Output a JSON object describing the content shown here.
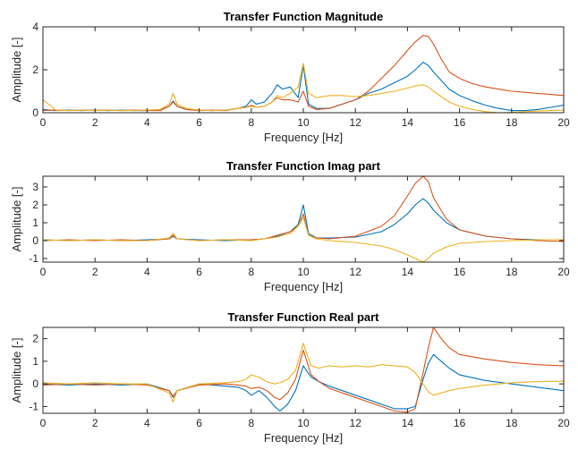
{
  "chart_data": [
    {
      "type": "line",
      "title": "Transfer Function Magnitude",
      "xlabel": "Frequency [Hz]",
      "ylabel": "Amplitude [-]",
      "xlim": [
        0,
        20
      ],
      "ylim": [
        0,
        4
      ],
      "xticks": [
        "0",
        "2",
        "4",
        "6",
        "8",
        "10",
        "12",
        "14",
        "16",
        "18",
        "20"
      ],
      "yticks": [
        "0",
        "2",
        "4"
      ],
      "grid": false,
      "legend": "none",
      "series": [
        {
          "color": "#0072BD",
          "x": [
            0,
            0.5,
            1,
            1.5,
            2,
            2.5,
            3,
            3.5,
            4,
            4.5,
            4.85,
            5,
            5.15,
            5.5,
            6,
            6.5,
            7,
            7.5,
            7.8,
            8,
            8.2,
            8.5,
            8.8,
            9,
            9.2,
            9.5,
            9.8,
            10,
            10.2,
            10.5,
            11,
            11.5,
            12,
            12.5,
            13,
            13.5,
            14,
            14.3,
            14.6,
            14.8,
            15,
            15.3,
            15.6,
            16,
            16.5,
            17,
            17.5,
            18,
            18.5,
            19,
            19.5,
            20
          ],
          "y": [
            0.15,
            0.1,
            0.12,
            0.1,
            0.12,
            0.1,
            0.12,
            0.1,
            0.1,
            0.12,
            0.3,
            0.55,
            0.3,
            0.15,
            0.12,
            0.1,
            0.12,
            0.2,
            0.3,
            0.6,
            0.4,
            0.5,
            0.9,
            1.3,
            1.1,
            1.2,
            0.7,
            2.2,
            0.4,
            0.2,
            0.2,
            0.4,
            0.6,
            0.9,
            1.1,
            1.4,
            1.7,
            2.0,
            2.35,
            2.2,
            1.9,
            1.5,
            1.1,
            0.8,
            0.55,
            0.35,
            0.2,
            0.1,
            0.1,
            0.15,
            0.25,
            0.35
          ]
        },
        {
          "color": "#D95319",
          "x": [
            0,
            0.5,
            1,
            1.5,
            2,
            2.5,
            3,
            3.5,
            4,
            4.5,
            4.85,
            5,
            5.15,
            5.5,
            6,
            6.5,
            7,
            7.5,
            7.8,
            8,
            8.2,
            8.5,
            8.8,
            9,
            9.2,
            9.5,
            9.8,
            10,
            10.2,
            10.5,
            11,
            11.5,
            12,
            12.5,
            13,
            13.5,
            14,
            14.3,
            14.6,
            14.8,
            15,
            15.3,
            15.6,
            16,
            16.5,
            17,
            17.5,
            18,
            18.5,
            19,
            19.5,
            20
          ],
          "y": [
            0.1,
            0.12,
            0.1,
            0.12,
            0.1,
            0.12,
            0.1,
            0.12,
            0.1,
            0.1,
            0.3,
            0.5,
            0.3,
            0.15,
            0.1,
            0.12,
            0.1,
            0.2,
            0.25,
            0.35,
            0.25,
            0.3,
            0.5,
            0.7,
            0.6,
            0.6,
            0.5,
            1.0,
            0.3,
            0.15,
            0.2,
            0.4,
            0.6,
            1.0,
            1.6,
            2.2,
            2.9,
            3.3,
            3.6,
            3.55,
            3.2,
            2.5,
            1.9,
            1.6,
            1.35,
            1.2,
            1.1,
            1.0,
            0.95,
            0.9,
            0.85,
            0.8
          ]
        },
        {
          "color": "#EDB120",
          "x": [
            0,
            0.5,
            1,
            1.5,
            2,
            2.5,
            3,
            3.5,
            4,
            4.5,
            4.85,
            5,
            5.15,
            5.5,
            6,
            6.5,
            7,
            7.5,
            7.8,
            8,
            8.2,
            8.5,
            8.8,
            9,
            9.2,
            9.5,
            9.8,
            10,
            10.2,
            10.5,
            11,
            11.5,
            12,
            12.5,
            13,
            13.5,
            14,
            14.3,
            14.6,
            14.8,
            15,
            15.3,
            15.6,
            16,
            16.5,
            17,
            17.5,
            18,
            18.5,
            19,
            19.5,
            20
          ],
          "y": [
            0.6,
            0.12,
            0.1,
            0.12,
            0.1,
            0.12,
            0.1,
            0.1,
            0.12,
            0.15,
            0.4,
            0.9,
            0.4,
            0.2,
            0.12,
            0.1,
            0.12,
            0.2,
            0.25,
            0.3,
            0.25,
            0.3,
            0.5,
            0.8,
            0.7,
            0.9,
            1.2,
            2.3,
            0.9,
            0.7,
            0.8,
            0.8,
            0.75,
            0.8,
            0.9,
            1.0,
            1.15,
            1.25,
            1.3,
            1.2,
            1.0,
            0.75,
            0.5,
            0.3,
            0.15,
            0.05,
            0.0,
            0.02,
            0.05,
            0.08,
            0.1,
            0.12
          ]
        }
      ]
    },
    {
      "type": "line",
      "title": "Transfer Function Imag part",
      "xlabel": "Frequency [Hz]",
      "ylabel": "Amplitude [-]",
      "xlim": [
        0,
        20
      ],
      "ylim": [
        -1.2,
        3.6
      ],
      "xticks": [
        "0",
        "2",
        "4",
        "6",
        "8",
        "10",
        "12",
        "14",
        "16",
        "18",
        "20"
      ],
      "yticks": [
        "-1",
        "0",
        "1",
        "2",
        "3"
      ],
      "grid": false,
      "legend": "none",
      "series": [
        {
          "color": "#0072BD",
          "x": [
            0,
            1,
            2,
            3,
            4,
            4.85,
            5,
            5.15,
            6,
            7,
            8,
            8.5,
            9,
            9.5,
            9.8,
            10,
            10.2,
            10.5,
            11,
            12,
            13,
            13.5,
            14,
            14.3,
            14.6,
            14.8,
            15,
            15.5,
            16,
            17,
            18,
            19,
            20
          ],
          "y": [
            0.05,
            0.0,
            0.05,
            0.0,
            0.05,
            0.1,
            0.25,
            0.1,
            0.05,
            0.0,
            0.05,
            0.1,
            0.25,
            0.5,
            0.9,
            2.0,
            0.4,
            0.15,
            0.15,
            0.2,
            0.5,
            0.9,
            1.5,
            2.0,
            2.35,
            2.1,
            1.7,
            1.0,
            0.6,
            0.25,
            0.1,
            0.05,
            0.05
          ]
        },
        {
          "color": "#D95319",
          "x": [
            0,
            1,
            2,
            3,
            4,
            4.85,
            5,
            5.15,
            6,
            7,
            8,
            8.5,
            9,
            9.5,
            9.8,
            10,
            10.2,
            10.5,
            11,
            12,
            13,
            13.5,
            14,
            14.3,
            14.6,
            14.8,
            15,
            15.5,
            16,
            17,
            18,
            19,
            20
          ],
          "y": [
            0.0,
            0.05,
            0.0,
            0.05,
            0.0,
            0.1,
            0.3,
            0.1,
            0.0,
            0.05,
            0.05,
            0.1,
            0.3,
            0.5,
            0.8,
            1.5,
            0.3,
            0.15,
            0.1,
            0.25,
            0.8,
            1.4,
            2.5,
            3.2,
            3.6,
            3.3,
            2.4,
            1.2,
            0.6,
            0.25,
            0.1,
            0.0,
            -0.05
          ]
        },
        {
          "color": "#EDB120",
          "x": [
            0,
            1,
            2,
            3,
            4,
            4.85,
            5,
            5.15,
            6,
            7,
            8,
            8.5,
            9,
            9.5,
            9.8,
            10,
            10.2,
            10.5,
            11,
            12,
            13,
            13.5,
            14,
            14.3,
            14.6,
            14.8,
            15,
            15.5,
            16,
            17,
            18,
            19,
            20
          ],
          "y": [
            0.05,
            0.0,
            0.05,
            0.0,
            0.0,
            0.15,
            0.4,
            0.1,
            0.0,
            0.05,
            0.0,
            0.1,
            0.2,
            0.4,
            0.8,
            1.3,
            0.3,
            0.1,
            0.0,
            -0.1,
            -0.3,
            -0.5,
            -0.8,
            -1.0,
            -1.2,
            -1.0,
            -0.7,
            -0.35,
            -0.15,
            -0.05,
            0.0,
            0.05,
            0.05
          ]
        }
      ]
    },
    {
      "type": "line",
      "title": "Transfer Function Real part",
      "xlabel": "Frequency [Hz]",
      "ylabel": "Amplitude [-]",
      "xlim": [
        0,
        20
      ],
      "ylim": [
        -1.3,
        2.5
      ],
      "xticks": [
        "0",
        "2",
        "4",
        "6",
        "8",
        "10",
        "12",
        "14",
        "16",
        "18",
        "20"
      ],
      "yticks": [
        "-1",
        "0",
        "1",
        "2"
      ],
      "grid": false,
      "legend": "none",
      "series": [
        {
          "color": "#0072BD",
          "x": [
            0,
            1,
            2,
            3,
            4,
            4.85,
            5,
            5.15,
            6,
            7,
            7.5,
            7.8,
            8,
            8.3,
            8.6,
            8.9,
            9.1,
            9.4,
            9.7,
            10,
            10.3,
            10.6,
            11,
            11.5,
            12,
            12.5,
            13,
            13.5,
            14,
            14.3,
            14.6,
            14.8,
            15,
            15.3,
            15.6,
            16,
            17,
            18,
            19,
            20
          ],
          "y": [
            0.0,
            -0.05,
            0.0,
            -0.05,
            0.0,
            -0.3,
            -0.6,
            -0.3,
            0.0,
            -0.1,
            -0.15,
            -0.3,
            -0.5,
            -0.3,
            -0.6,
            -1.0,
            -1.2,
            -0.9,
            -0.3,
            0.8,
            0.3,
            0.1,
            -0.1,
            -0.3,
            -0.5,
            -0.7,
            -0.9,
            -1.1,
            -1.1,
            -1.0,
            0.2,
            0.9,
            1.3,
            1.0,
            0.7,
            0.4,
            0.15,
            0.0,
            -0.15,
            -0.3
          ]
        },
        {
          "color": "#D95319",
          "x": [
            0,
            1,
            2,
            3,
            4,
            4.85,
            5,
            5.15,
            6,
            7,
            7.5,
            7.8,
            8,
            8.3,
            8.6,
            8.9,
            9.1,
            9.4,
            9.7,
            10,
            10.3,
            10.6,
            11,
            11.5,
            12,
            12.5,
            13,
            13.5,
            14,
            14.3,
            14.6,
            14.8,
            15,
            15.3,
            15.6,
            16,
            17,
            18,
            19,
            20
          ],
          "y": [
            -0.05,
            0.0,
            -0.05,
            0.0,
            -0.05,
            -0.3,
            -0.55,
            -0.3,
            -0.05,
            0.0,
            -0.05,
            -0.1,
            -0.2,
            -0.15,
            -0.3,
            -0.6,
            -0.7,
            -0.4,
            0.2,
            1.5,
            0.4,
            0.1,
            -0.2,
            -0.4,
            -0.6,
            -0.8,
            -1.0,
            -1.2,
            -1.25,
            -1.1,
            0.5,
            1.6,
            2.5,
            2.0,
            1.6,
            1.3,
            1.1,
            0.95,
            0.85,
            0.8
          ]
        },
        {
          "color": "#EDB120",
          "x": [
            0,
            1,
            2,
            3,
            4,
            4.85,
            5,
            5.15,
            6,
            7,
            7.5,
            7.8,
            8,
            8.3,
            8.6,
            8.9,
            9.1,
            9.4,
            9.7,
            10,
            10.3,
            10.6,
            11,
            11.5,
            12,
            12.5,
            13,
            13.5,
            14,
            14.3,
            14.6,
            14.8,
            15,
            15.3,
            15.6,
            16,
            17,
            18,
            19,
            20
          ],
          "y": [
            0.05,
            0.0,
            0.05,
            0.0,
            0.0,
            -0.4,
            -0.8,
            -0.3,
            0.0,
            0.05,
            0.1,
            0.2,
            0.4,
            0.3,
            0.1,
            0.0,
            0.05,
            0.2,
            0.6,
            1.8,
            0.8,
            0.7,
            0.8,
            0.75,
            0.8,
            0.75,
            0.85,
            0.8,
            0.75,
            0.5,
            0.0,
            -0.35,
            -0.5,
            -0.4,
            -0.3,
            -0.2,
            -0.05,
            0.05,
            0.1,
            0.12
          ]
        }
      ]
    }
  ]
}
